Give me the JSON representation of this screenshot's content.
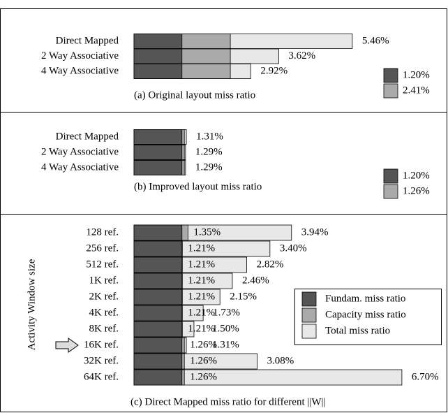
{
  "chart_data": [
    {
      "type": "bar",
      "title": "(a) Original layout miss ratio",
      "categories": [
        "Direct Mapped",
        "2 Way Associative",
        "4 Way Associative"
      ],
      "xlim": [
        0,
        7
      ],
      "series": [
        {
          "color": "#555555",
          "values": [
            1.2,
            1.2,
            1.2
          ]
        },
        {
          "color": "#aaaaaa",
          "values": [
            2.41,
            2.41,
            2.41
          ]
        },
        {
          "color": "#e8e8e8",
          "values": [
            5.46,
            3.62,
            2.92
          ],
          "value_labels": [
            "5.46%",
            "3.62%",
            "2.92%"
          ]
        }
      ],
      "key": [
        {
          "value": 1.2,
          "label": "1.20%",
          "color": "#555555"
        },
        {
          "value": 2.41,
          "label": "2.41%",
          "color": "#aaaaaa"
        }
      ]
    },
    {
      "type": "bar",
      "title": "(b) Improved layout miss ratio",
      "categories": [
        "Direct Mapped",
        "2 Way Associative",
        "4 Way Associative"
      ],
      "xlim": [
        0,
        7
      ],
      "series": [
        {
          "color": "#555555",
          "values": [
            1.2,
            1.2,
            1.2
          ]
        },
        {
          "color": "#aaaaaa",
          "values": [
            1.26,
            1.26,
            1.26
          ]
        },
        {
          "color": "#e8e8e8",
          "values": [
            1.31,
            1.29,
            1.29
          ],
          "value_labels": [
            "1.31%",
            "1.29%",
            "1.29%"
          ]
        }
      ],
      "key": [
        {
          "value": 1.2,
          "label": "1.20%",
          "color": "#555555"
        },
        {
          "value": 1.26,
          "label": "1.26%",
          "color": "#aaaaaa"
        }
      ]
    },
    {
      "type": "bar",
      "title": "(c) Direct Mapped miss ratio for different ||W||",
      "ylabel": "Activity Window size",
      "categories": [
        "128 ref.",
        "256 ref.",
        "512 ref.",
        "1K ref.",
        "2K ref.",
        "4K ref.",
        "8K ref.",
        "16K ref.",
        "32K ref.",
        "64K ref."
      ],
      "xlim": [
        0,
        7
      ],
      "series": [
        {
          "name": "Fundam. miss ratio",
          "color": "#555555",
          "values": [
            1.2,
            1.2,
            1.2,
            1.2,
            1.2,
            1.2,
            1.2,
            1.2,
            1.2,
            1.2
          ]
        },
        {
          "name": "Capacity miss ratio",
          "color": "#aaaaaa",
          "values": [
            1.35,
            1.21,
            1.21,
            1.21,
            1.21,
            1.21,
            1.21,
            1.26,
            1.26,
            1.26
          ],
          "value_labels": [
            "1.35%",
            "1.21%",
            "1.21%",
            "1.21%",
            "1.21%",
            "1.21%",
            "1.21%",
            "1.26%",
            "1.26%",
            "1.26%"
          ]
        },
        {
          "name": "Total miss ratio",
          "color": "#e8e8e8",
          "values": [
            3.94,
            3.4,
            2.82,
            2.46,
            2.15,
            1.73,
            1.5,
            1.31,
            3.08,
            6.7
          ],
          "value_labels": [
            "3.94%",
            "3.40%",
            "2.82%",
            "2.46%",
            "2.15%",
            "1.73%",
            "1.50%",
            "1.31%",
            "3.08%",
            "6.70%"
          ]
        }
      ]
    }
  ]
}
